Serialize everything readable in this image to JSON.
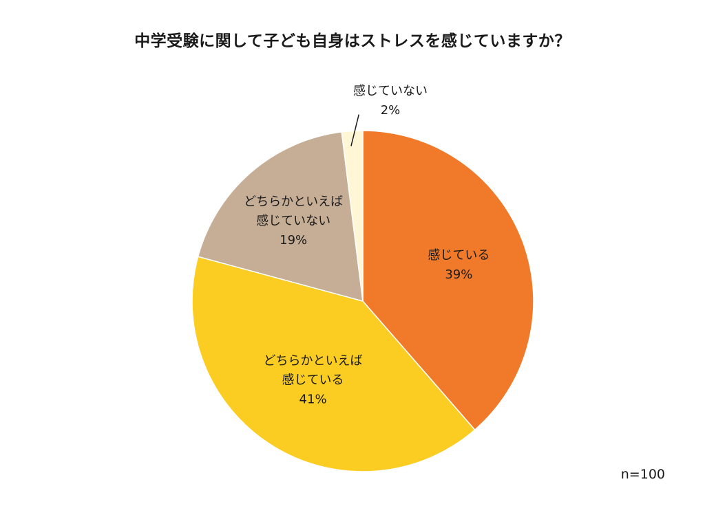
{
  "chart_data": {
    "type": "pie",
    "title": "中学受験に関して子ども自身はストレスを感じていますか？",
    "slices": [
      {
        "label": [
          "感じている"
        ],
        "value": 39,
        "value_label": "39%",
        "color": "#F07A2A"
      },
      {
        "label": [
          "どちらかといえば",
          "感じている"
        ],
        "value": 41,
        "value_label": "41%",
        "color": "#FBCD23"
      },
      {
        "label": [
          "どちらかといえば",
          "感じていない"
        ],
        "value": 19,
        "value_label": "19%",
        "color": "#C6AE96"
      },
      {
        "label": [
          "感じていない"
        ],
        "value": 2,
        "value_label": "2%",
        "color": "#FFF6D5"
      }
    ],
    "start": "12 o'clock, clockwise",
    "note": "n=100"
  }
}
